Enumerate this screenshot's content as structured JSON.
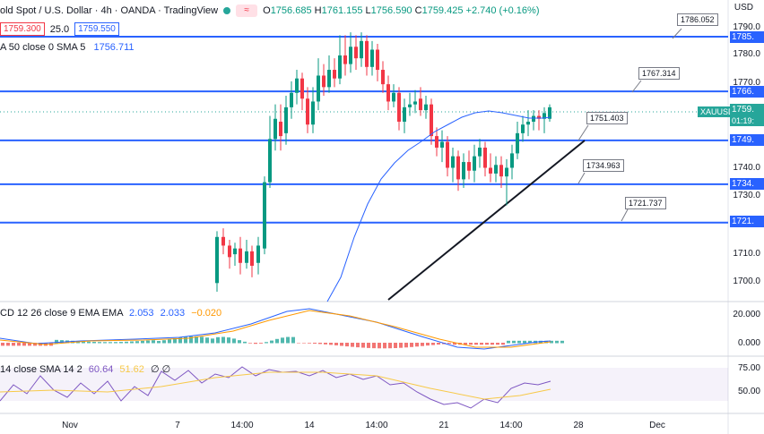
{
  "header": {
    "symbol": "old Spot / U.S. Dollar · 4h · OANDA · TradingView",
    "badge": "≈",
    "ohlc": {
      "o_label": "O",
      "o": "1756.685",
      "h_label": "H",
      "h": "1761.155",
      "l_label": "L",
      "l": "1756.590",
      "c_label": "C",
      "c": "1759.425",
      "chg": "+2.740 (+0.16%)"
    },
    "sell": "1759.30",
    "sell_suffix": "0",
    "spread": "25.0",
    "buy": "1759.55",
    "buy_suffix": "0"
  },
  "indicators": {
    "sma": "A 50 close 0 SMA 5",
    "sma_val": "1756.711",
    "macd": "CD 12 26 close 9 EMA EMA",
    "macd_v1": "2.053",
    "macd_v2": "2.033",
    "macd_v3": "−0.020",
    "rsi": "14 close SMA 14 2",
    "rsi_v1": "60.64",
    "rsi_v2": "51.62",
    "rsi_v3": "∅ ∅"
  },
  "axis": {
    "currency": "USD",
    "price_ticks": [
      "1790.0",
      "1780.0",
      "1770.0",
      "1740.0",
      "1730.0",
      "1710.0",
      "1700.0"
    ],
    "macd_ticks": [
      "20.000",
      "0.000"
    ],
    "rsi_ticks": [
      "75.00",
      "50.00"
    ],
    "x_ticks": [
      "Nov",
      "7",
      "14:00",
      "14",
      "14:00",
      "21",
      "14:00",
      "28",
      "Dec"
    ]
  },
  "levels": [
    {
      "label": "1786.052",
      "axis": "1785.",
      "price": 1785.5
    },
    {
      "label": "1767.314",
      "axis": "1766.",
      "price": 1766.5
    },
    {
      "label": "1751.403",
      "axis": "1749.",
      "price": 1749.5
    },
    {
      "label": "1734.963",
      "axis": "1734.",
      "price": 1734.3
    },
    {
      "label": "1721.737",
      "axis": "1721.",
      "price": 1721.0
    }
  ],
  "price_tag": {
    "symbol": "XAUUSD",
    "price": "1759.",
    "timer": "01:19:"
  },
  "colors": {
    "up": "#089981",
    "down": "#f23645",
    "level": "#2962ff",
    "sma": "#2962ff",
    "signal": "#ff9800",
    "rsi": "#7e57c2",
    "rsi_sma": "#f7c948"
  }
}
